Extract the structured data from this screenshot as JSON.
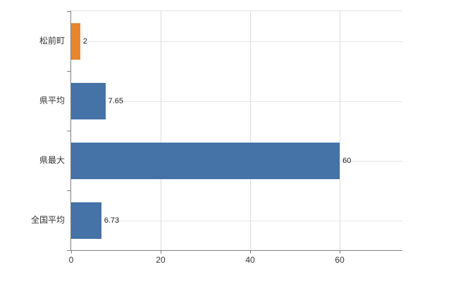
{
  "chart_data": {
    "type": "bar",
    "orientation": "horizontal",
    "title": "",
    "categories": [
      "松前町",
      "県平均",
      "県最大",
      "全国平均"
    ],
    "values": [
      2,
      7.65,
      60,
      6.73
    ],
    "value_labels": [
      "2",
      "7.65",
      "60",
      "6.73"
    ],
    "bar_colors": [
      "#e8862d",
      "#4572a7",
      "#4572a7",
      "#4572a7"
    ],
    "xlim": [
      0,
      74
    ],
    "xticks": [
      0,
      20,
      40,
      60
    ],
    "grid": "on",
    "legend": "none",
    "axis_color": "#808080",
    "gridline_color": "#e0e0e0",
    "label_color": "#333333",
    "background_color": "#ffffff"
  }
}
